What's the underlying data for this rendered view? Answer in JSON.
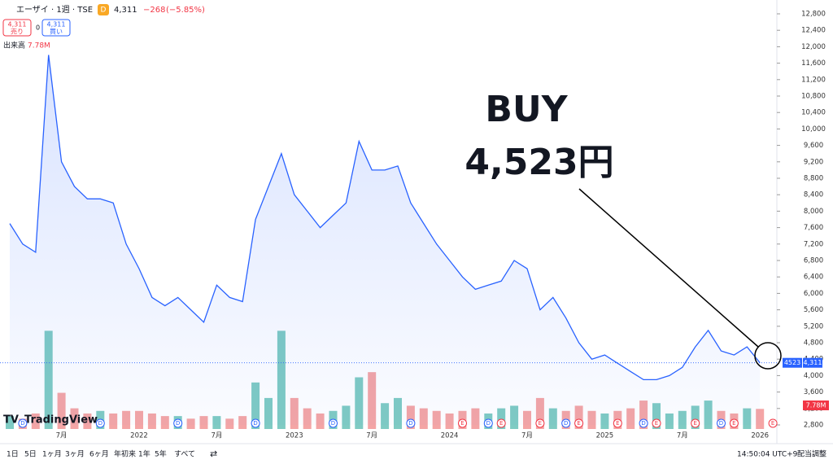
{
  "chart_data": {
    "type": "area",
    "title": "エーザイ · 1週 · TSE",
    "badge": "D",
    "price": "4,311",
    "change": "−268",
    "change_pct": "(−5.85%)",
    "sell": {
      "price": "4,311",
      "label": "売り"
    },
    "spread": "0",
    "buy": {
      "price": "4,311",
      "label": "買い"
    },
    "categories": [
      null,
      null,
      null,
      null,
      "7月",
      null,
      null,
      null,
      null,
      null,
      "2022",
      null,
      null,
      null,
      null,
      null,
      "7月",
      null,
      null,
      null,
      null,
      null,
      "2023",
      null,
      null,
      null,
      null,
      null,
      "7月",
      null,
      null,
      null,
      null,
      null,
      "2024",
      null,
      null,
      null,
      null,
      null,
      "7月",
      null,
      null,
      null,
      null,
      null,
      "2025",
      null,
      null,
      null,
      null,
      null,
      "7月",
      null,
      null,
      null,
      null,
      null,
      "2026"
    ],
    "series": [
      {
        "color": "#2962ff",
        "values": [
          7700,
          7200,
          7000,
          11800,
          9200,
          8600,
          8300,
          8300,
          8200,
          7200,
          6600,
          5900,
          5700,
          5900,
          5600,
          5300,
          6200,
          5900,
          5800,
          7800,
          8600,
          9400,
          8400,
          8000,
          7600,
          7900,
          8200,
          9700,
          9000,
          9000,
          9100,
          8200,
          7700,
          7200,
          6800,
          6400,
          6100,
          6200,
          6300,
          6800,
          6600,
          5600,
          5900,
          5400,
          4800,
          4400,
          4500,
          4300,
          4100,
          3900,
          3900,
          4000,
          4200,
          4700,
          5100,
          4600,
          4500,
          4700,
          4311
        ]
      },
      {
        "name": "出来高",
        "axis": "y2",
        "up_color": "#7fcbc3",
        "down_color": "#f4a5a5",
        "last_value_label": "7.78M",
        "values": [
          5,
          4,
          6,
          38,
          14,
          8,
          6,
          7,
          6,
          7,
          7,
          6,
          5,
          5,
          4,
          5,
          5,
          4,
          5,
          18,
          12,
          38,
          12,
          8,
          6,
          7,
          9,
          20,
          22,
          10,
          12,
          9,
          8,
          7,
          6,
          7,
          8,
          6,
          8,
          9,
          7,
          12,
          8,
          7,
          9,
          7,
          6,
          7,
          8,
          11,
          10,
          6,
          7,
          9,
          11,
          7,
          6,
          8,
          7.78
        ]
      }
    ],
    "ylim": [
      2800,
      12800
    ],
    "yticks": [
      {
        "value": 2800,
        "label": "2,800"
      },
      {
        "value": 3200,
        "label": "3,200"
      },
      {
        "value": 3600,
        "label": "3,600"
      },
      {
        "value": 4000,
        "label": "4,000"
      },
      {
        "value": 4400,
        "label": "4,400"
      },
      {
        "value": 4800,
        "label": "4,800"
      },
      {
        "value": 5200,
        "label": "5,200"
      },
      {
        "value": 5600,
        "label": "5,600"
      },
      {
        "value": 6000,
        "label": "6,000"
      },
      {
        "value": 6400,
        "label": "6,400"
      },
      {
        "value": 6800,
        "label": "6,800"
      },
      {
        "value": 7200,
        "label": "7,200"
      },
      {
        "value": 7600,
        "label": "7,600"
      },
      {
        "value": 8000,
        "label": "8,000"
      },
      {
        "value": 8400,
        "label": "8,400"
      },
      {
        "value": 8800,
        "label": "8,800"
      },
      {
        "value": 9200,
        "label": "9,200"
      },
      {
        "value": 9600,
        "label": "9,600"
      },
      {
        "value": 10000,
        "label": "10,000"
      },
      {
        "value": 10400,
        "label": "10,400"
      },
      {
        "value": 10800,
        "label": "10,800"
      },
      {
        "value": 11200,
        "label": "11,200"
      },
      {
        "value": 11600,
        "label": "11,600"
      },
      {
        "value": 12000,
        "label": "12,000"
      },
      {
        "value": 12400,
        "label": "12,400"
      },
      {
        "value": 12800,
        "label": "12,800"
      }
    ],
    "y2lim": [
      0,
      40
    ],
    "price_tags": [
      {
        "value": 4523,
        "label": "4523",
        "color": "#2962ff"
      },
      {
        "value": 4311,
        "label": "4,311",
        "color": "#2962ff"
      }
    ],
    "events": [
      {
        "at": 1,
        "label": "D"
      },
      {
        "at": 7,
        "label": "D"
      },
      {
        "at": 13,
        "label": "D"
      },
      {
        "at": 19,
        "label": "D"
      },
      {
        "at": 25,
        "label": "D"
      },
      {
        "at": 31,
        "label": "D"
      },
      {
        "at": 35,
        "label": "E"
      },
      {
        "at": 37,
        "label": "D"
      },
      {
        "at": 38,
        "label": "E"
      },
      {
        "at": 41,
        "label": "E"
      },
      {
        "at": 43,
        "label": "D"
      },
      {
        "at": 44,
        "label": "E"
      },
      {
        "at": 47,
        "label": "E"
      },
      {
        "at": 49,
        "label": "D"
      },
      {
        "at": 50,
        "label": "E"
      },
      {
        "at": 53,
        "label": "E"
      },
      {
        "at": 55,
        "label": "D"
      },
      {
        "at": 56,
        "label": "E"
      },
      {
        "at": 59,
        "label": "E"
      }
    ],
    "annotations": [
      "BUY",
      "4,523円"
    ],
    "logo": "TradingView",
    "ranges": [
      "1日",
      "5日",
      "1ヶ月",
      "3ヶ月",
      "6ヶ月",
      "年初来",
      "1年",
      "5年",
      "すべて"
    ],
    "clock": "14:50:04 UTC+9",
    "adjust": "配当調整"
  }
}
